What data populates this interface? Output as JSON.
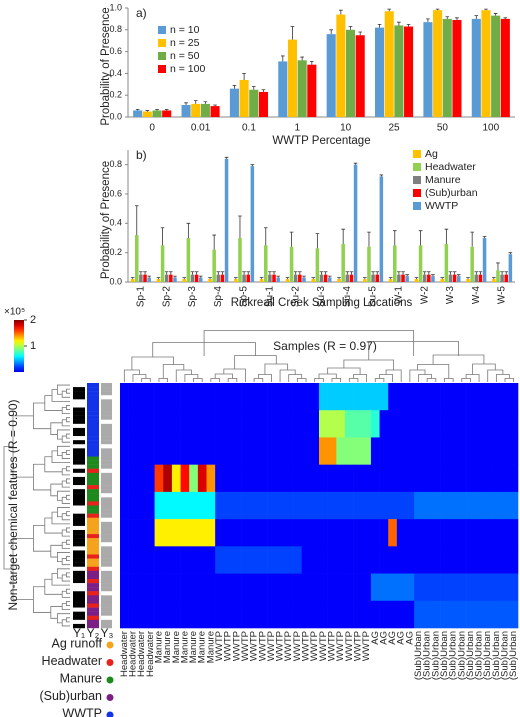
{
  "chart_data": [
    {
      "type": "bar",
      "panel": "a)",
      "ylabel": "Probability of Presence",
      "xlabel": "WWTP Percentage",
      "categories": [
        "0",
        "0.01",
        "0.1",
        "1",
        "10",
        "25",
        "50",
        "100"
      ],
      "series": [
        {
          "name": "n = 10",
          "color": "#5b9bd5",
          "values": [
            0.06,
            0.11,
            0.26,
            0.51,
            0.76,
            0.82,
            0.87,
            0.9
          ],
          "errors": [
            0.01,
            0.02,
            0.03,
            0.05,
            0.04,
            0.03,
            0.03,
            0.03
          ]
        },
        {
          "name": "n = 25",
          "color": "#ffc000",
          "values": [
            0.05,
            0.12,
            0.34,
            0.71,
            0.94,
            0.97,
            0.98,
            0.98
          ],
          "errors": [
            0.01,
            0.03,
            0.06,
            0.12,
            0.04,
            0.02,
            0.01,
            0.01
          ]
        },
        {
          "name": "n = 50",
          "color": "#70ad47",
          "values": [
            0.06,
            0.12,
            0.25,
            0.52,
            0.8,
            0.84,
            0.9,
            0.93
          ],
          "errors": [
            0.01,
            0.02,
            0.03,
            0.03,
            0.03,
            0.03,
            0.02,
            0.02
          ]
        },
        {
          "name": "n = 100",
          "color": "#ff0000",
          "values": [
            0.06,
            0.1,
            0.23,
            0.48,
            0.75,
            0.83,
            0.89,
            0.9
          ],
          "errors": [
            0.01,
            0.01,
            0.02,
            0.03,
            0.03,
            0.02,
            0.02,
            0.01
          ]
        }
      ],
      "ylim": [
        0,
        1
      ],
      "yticks": [
        {
          "value": 0,
          "label": "0.0"
        },
        0.2,
        0.4,
        0.6,
        0.8,
        {
          "value": 1,
          "label": "1.0"
        }
      ],
      "legend": "upper left"
    },
    {
      "type": "bar",
      "panel": "b)",
      "ylabel": "Probability of Presence",
      "xlabel": "Rickreall Creek Sampling Locations",
      "categories": [
        "Sp-1",
        "Sp-2",
        "Sp-3",
        "Sp-4",
        "Sp-5",
        "Su-1",
        "Su-2",
        "Su-3",
        "Su-4",
        "Su-5",
        "W-1",
        "W-2",
        "W-3",
        "W-4",
        "W-5"
      ],
      "series": [
        {
          "name": "Ag",
          "color": "#ffc000",
          "values": [
            0.02,
            0.02,
            0.02,
            0.02,
            0.02,
            0.02,
            0.02,
            0.02,
            0.02,
            0.02,
            0.02,
            0.02,
            0.02,
            0.02,
            0.02
          ],
          "errors": [
            0.01,
            0.01,
            0.01,
            0.01,
            0.01,
            0.01,
            0.01,
            0.01,
            0.01,
            0.01,
            0.01,
            0.01,
            0.01,
            0.01,
            0.01
          ]
        },
        {
          "name": "Headwater",
          "color": "#92d050",
          "values": [
            0.32,
            0.25,
            0.3,
            0.22,
            0.3,
            0.25,
            0.24,
            0.23,
            0.26,
            0.24,
            0.25,
            0.25,
            0.26,
            0.24,
            0.08
          ],
          "errors": [
            0.2,
            0.12,
            0.1,
            0.1,
            0.15,
            0.12,
            0.1,
            0.1,
            0.1,
            0.1,
            0.1,
            0.1,
            0.1,
            0.1,
            0.05
          ]
        },
        {
          "name": "Manure",
          "color": "#7f7f7f",
          "values": [
            0.05,
            0.05,
            0.05,
            0.05,
            0.05,
            0.05,
            0.05,
            0.05,
            0.05,
            0.05,
            0.05,
            0.05,
            0.05,
            0.05,
            0.05
          ],
          "errors": [
            0.02,
            0.02,
            0.02,
            0.02,
            0.02,
            0.02,
            0.02,
            0.02,
            0.02,
            0.02,
            0.02,
            0.02,
            0.02,
            0.02,
            0.02
          ]
        },
        {
          "name": "(Sub)urban",
          "color": "#ff0000",
          "values": [
            0.05,
            0.05,
            0.05,
            0.05,
            0.05,
            0.05,
            0.05,
            0.05,
            0.05,
            0.05,
            0.05,
            0.05,
            0.05,
            0.05,
            0.05
          ],
          "errors": [
            0.02,
            0.02,
            0.02,
            0.02,
            0.02,
            0.02,
            0.02,
            0.02,
            0.02,
            0.02,
            0.02,
            0.02,
            0.02,
            0.02,
            0.02
          ]
        },
        {
          "name": "WWTP",
          "color": "#5b9bd5",
          "values": [
            0.03,
            0.03,
            0.03,
            0.84,
            0.79,
            0.03,
            0.03,
            0.03,
            0.8,
            0.72,
            0.04,
            0.04,
            0.04,
            0.3,
            0.19
          ],
          "errors": [
            0.01,
            0.01,
            0.01,
            0.01,
            0.01,
            0.01,
            0.01,
            0.01,
            0.01,
            0.01,
            0.01,
            0.01,
            0.01,
            0.01,
            0.01
          ]
        }
      ],
      "ylim": [
        0,
        0.9
      ],
      "yticks": [
        {
          "value": 0,
          "label": "0.0"
        },
        0.2,
        0.4,
        0.6,
        0.8
      ],
      "legend": "upper right"
    },
    {
      "type": "heatmap",
      "title": "Samples (R = 0.97)",
      "ylabel": "Non-target chemical features (R = 0.90)",
      "columns": [
        "Headwater",
        "Headwater",
        "Headwater",
        "Headwater",
        "Manure",
        "Manure",
        "Manure",
        "Manure",
        "Manure",
        "Manure",
        "Manure",
        "WWTP",
        "WWTP",
        "WWTP",
        "WWTP",
        "WWTP",
        "WWTP",
        "WWTP",
        "WWTP",
        "WWTP",
        "WWTP",
        "WWTP",
        "WWTP",
        "WWTP",
        "WWTP",
        "WWTP",
        "WWTP",
        "WWTP",
        "WWTP",
        "AG",
        "AG",
        "AG",
        "AG",
        "AG",
        "(Sub)Urban",
        "(Sub)Urban",
        "(Sub)Urban",
        "(Sub)Urban",
        "(Sub)Urban",
        "(Sub)Urban",
        "(Sub)Urban",
        "(Sub)Urban",
        "(Sub)Urban",
        "(Sub)Urban",
        "(Sub)Urban",
        "(Sub)Urban"
      ],
      "values": [
        [
          0.05,
          0.05,
          0.05,
          0.05,
          0.05,
          0.05,
          0.05,
          0.05,
          0.05,
          0.05,
          0.05,
          0.05,
          0.05,
          0.05,
          0.05,
          0.05,
          0.05,
          0.05,
          0.05,
          0.05,
          0.05,
          0.05,
          0.05,
          0.5,
          0.5,
          0.5,
          0.5,
          0.5,
          0.5,
          0.5,
          0.5,
          0.05,
          0.05,
          0.05,
          0.05,
          0.05,
          0.05,
          0.05,
          0.05,
          0.05,
          0.05,
          0.05,
          0.05,
          0.05,
          0.05,
          0.05
        ],
        [
          0.05,
          0.05,
          0.05,
          0.05,
          0.05,
          0.05,
          0.05,
          0.05,
          0.05,
          0.05,
          0.05,
          0.05,
          0.05,
          0.05,
          0.05,
          0.05,
          0.05,
          0.05,
          0.05,
          0.05,
          0.05,
          0.05,
          0.05,
          1,
          1,
          1,
          0.8,
          0.8,
          0.8,
          0.7,
          0.05,
          0.05,
          0.05,
          0.05,
          0.05,
          0.05,
          0.05,
          0.05,
          0.05,
          0.05,
          0.05,
          0.05,
          0.05,
          0.05,
          0.05,
          0.05
        ],
        [
          0.05,
          0.05,
          0.05,
          0.05,
          0.05,
          0.05,
          0.05,
          0.05,
          0.05,
          0.05,
          0.05,
          0.05,
          0.05,
          0.05,
          0.05,
          0.05,
          0.05,
          0.05,
          0.05,
          0.05,
          0.05,
          0.05,
          0.05,
          1.4,
          1.4,
          0.9,
          0.9,
          0.9,
          0.9,
          0.05,
          0.05,
          0.05,
          0.05,
          0.05,
          0.05,
          0.05,
          0.05,
          0.05,
          0.05,
          0.05,
          0.05,
          0.05,
          0.05,
          0.05,
          0.05,
          0.05
        ],
        [
          0.05,
          0.05,
          0.05,
          0.05,
          1.6,
          1.9,
          1.2,
          1.7,
          0.9,
          1.8,
          1.4,
          0.05,
          0.05,
          0.05,
          0.05,
          0.05,
          0.05,
          0.05,
          0.05,
          0.05,
          0.05,
          0.05,
          0.05,
          0.05,
          0.05,
          0.05,
          0.05,
          0.05,
          0.05,
          0.05,
          0.05,
          0.05,
          0.05,
          0.05,
          0.05,
          0.05,
          0.05,
          0.05,
          0.05,
          0.05,
          0.05,
          0.05,
          0.05,
          0.05,
          0.05,
          0.05
        ],
        [
          0.05,
          0.05,
          0.05,
          0.05,
          0.6,
          0.6,
          0.6,
          0.6,
          0.6,
          0.6,
          0.6,
          0.2,
          0.2,
          0.2,
          0.2,
          0.2,
          0.2,
          0.2,
          0.2,
          0.2,
          0.2,
          0.2,
          0.2,
          0.2,
          0.2,
          0.2,
          0.2,
          0.2,
          0.2,
          0.2,
          0.2,
          0.2,
          0.2,
          0.2,
          0.3,
          0.3,
          0.3,
          0.3,
          0.3,
          0.3,
          0.3,
          0.3,
          0.3,
          0.3,
          0.3,
          0.3
        ],
        [
          0.05,
          0.05,
          0.05,
          0.05,
          1.2,
          1.2,
          1.2,
          1.2,
          1.2,
          1.2,
          1.2,
          0.05,
          0.05,
          0.05,
          0.05,
          0.05,
          0.05,
          0.05,
          0.05,
          0.05,
          0.05,
          0.05,
          0.05,
          0.05,
          0.05,
          0.05,
          0.05,
          0.05,
          0.05,
          0.05,
          0.05,
          1.5,
          0.05,
          0.05,
          0.05,
          0.05,
          0.05,
          0.05,
          0.05,
          0.05,
          0.05,
          0.05,
          0.05,
          0.05,
          0.05,
          0.05
        ],
        [
          0.05,
          0.05,
          0.05,
          0.05,
          0.05,
          0.05,
          0.05,
          0.05,
          0.05,
          0.05,
          0.05,
          0.2,
          0.2,
          0.2,
          0.2,
          0.2,
          0.2,
          0.2,
          0.2,
          0.2,
          0.2,
          0.05,
          0.05,
          0.05,
          0.05,
          0.05,
          0.05,
          0.05,
          0.05,
          0.05,
          0.05,
          0.05,
          0.05,
          0.05,
          0.05,
          0.05,
          0.05,
          0.05,
          0.05,
          0.05,
          0.05,
          0.05,
          0.05,
          0.05,
          0.05,
          0.05
        ],
        [
          0.05,
          0.05,
          0.05,
          0.05,
          0.05,
          0.05,
          0.05,
          0.05,
          0.05,
          0.05,
          0.05,
          0.05,
          0.05,
          0.05,
          0.05,
          0.05,
          0.05,
          0.05,
          0.05,
          0.05,
          0.05,
          0.05,
          0.05,
          0.05,
          0.05,
          0.05,
          0.05,
          0.05,
          0.05,
          0.3,
          0.3,
          0.3,
          0.3,
          0.3,
          0.2,
          0.2,
          0.2,
          0.2,
          0.2,
          0.2,
          0.2,
          0.2,
          0.2,
          0.2,
          0.2,
          0.2
        ],
        [
          0.05,
          0.05,
          0.05,
          0.05,
          0.05,
          0.05,
          0.05,
          0.05,
          0.05,
          0.05,
          0.05,
          0.05,
          0.05,
          0.05,
          0.05,
          0.05,
          0.05,
          0.05,
          0.05,
          0.05,
          0.05,
          0.05,
          0.05,
          0.05,
          0.05,
          0.05,
          0.05,
          0.05,
          0.05,
          0.05,
          0.05,
          0.05,
          0.05,
          0.05,
          0.25,
          0.25,
          0.25,
          0.25,
          0.25,
          0.25,
          0.25,
          0.25,
          0.25,
          0.25,
          0.25,
          0.25
        ]
      ],
      "colorbar": {
        "lim": [
          0,
          2
        ],
        "ticks": [
          1,
          2
        ],
        "label": "×10⁵"
      },
      "annotation_labels": [
        "Y₁",
        "Y₂",
        "Y₃"
      ],
      "legend": [
        {
          "name": "Ag runoff",
          "color": "#f5a21c"
        },
        {
          "name": "Headwater",
          "color": "#e8211b"
        },
        {
          "name": "Manure",
          "color": "#1e8a1e"
        },
        {
          "name": "(Sub)urban",
          "color": "#7b1f86"
        },
        {
          "name": "WWTP",
          "color": "#1233e8"
        }
      ]
    }
  ]
}
